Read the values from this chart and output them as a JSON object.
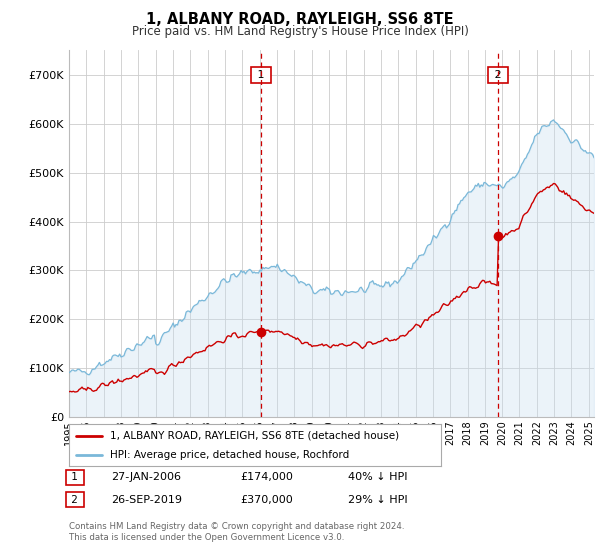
{
  "title": "1, ALBANY ROAD, RAYLEIGH, SS6 8TE",
  "subtitle": "Price paid vs. HM Land Registry's House Price Index (HPI)",
  "legend_line1": "1, ALBANY ROAD, RAYLEIGH, SS6 8TE (detached house)",
  "legend_line2": "HPI: Average price, detached house, Rochford",
  "footnote1": "Contains HM Land Registry data © Crown copyright and database right 2024.",
  "footnote2": "This data is licensed under the Open Government Licence v3.0.",
  "transaction1_label": "1",
  "transaction1_date": "27-JAN-2006",
  "transaction1_price": "£174,000",
  "transaction1_hpi": "40% ↓ HPI",
  "transaction2_label": "2",
  "transaction2_date": "26-SEP-2019",
  "transaction2_price": "£370,000",
  "transaction2_hpi": "29% ↓ HPI",
  "vline1_x": 2006.08,
  "vline2_x": 2019.75,
  "point1_x": 2006.08,
  "point1_y": 174000,
  "point2_x": 2019.75,
  "point2_y": 370000,
  "hpi_color": "#7ab8d9",
  "hpi_fill_color": "#c8dff0",
  "price_color": "#cc0000",
  "vline_color": "#cc0000",
  "background_color": "#ffffff",
  "grid_color": "#cccccc",
  "ylim": [
    0,
    750000
  ],
  "xlim_left": 1995.0,
  "xlim_right": 2025.3
}
